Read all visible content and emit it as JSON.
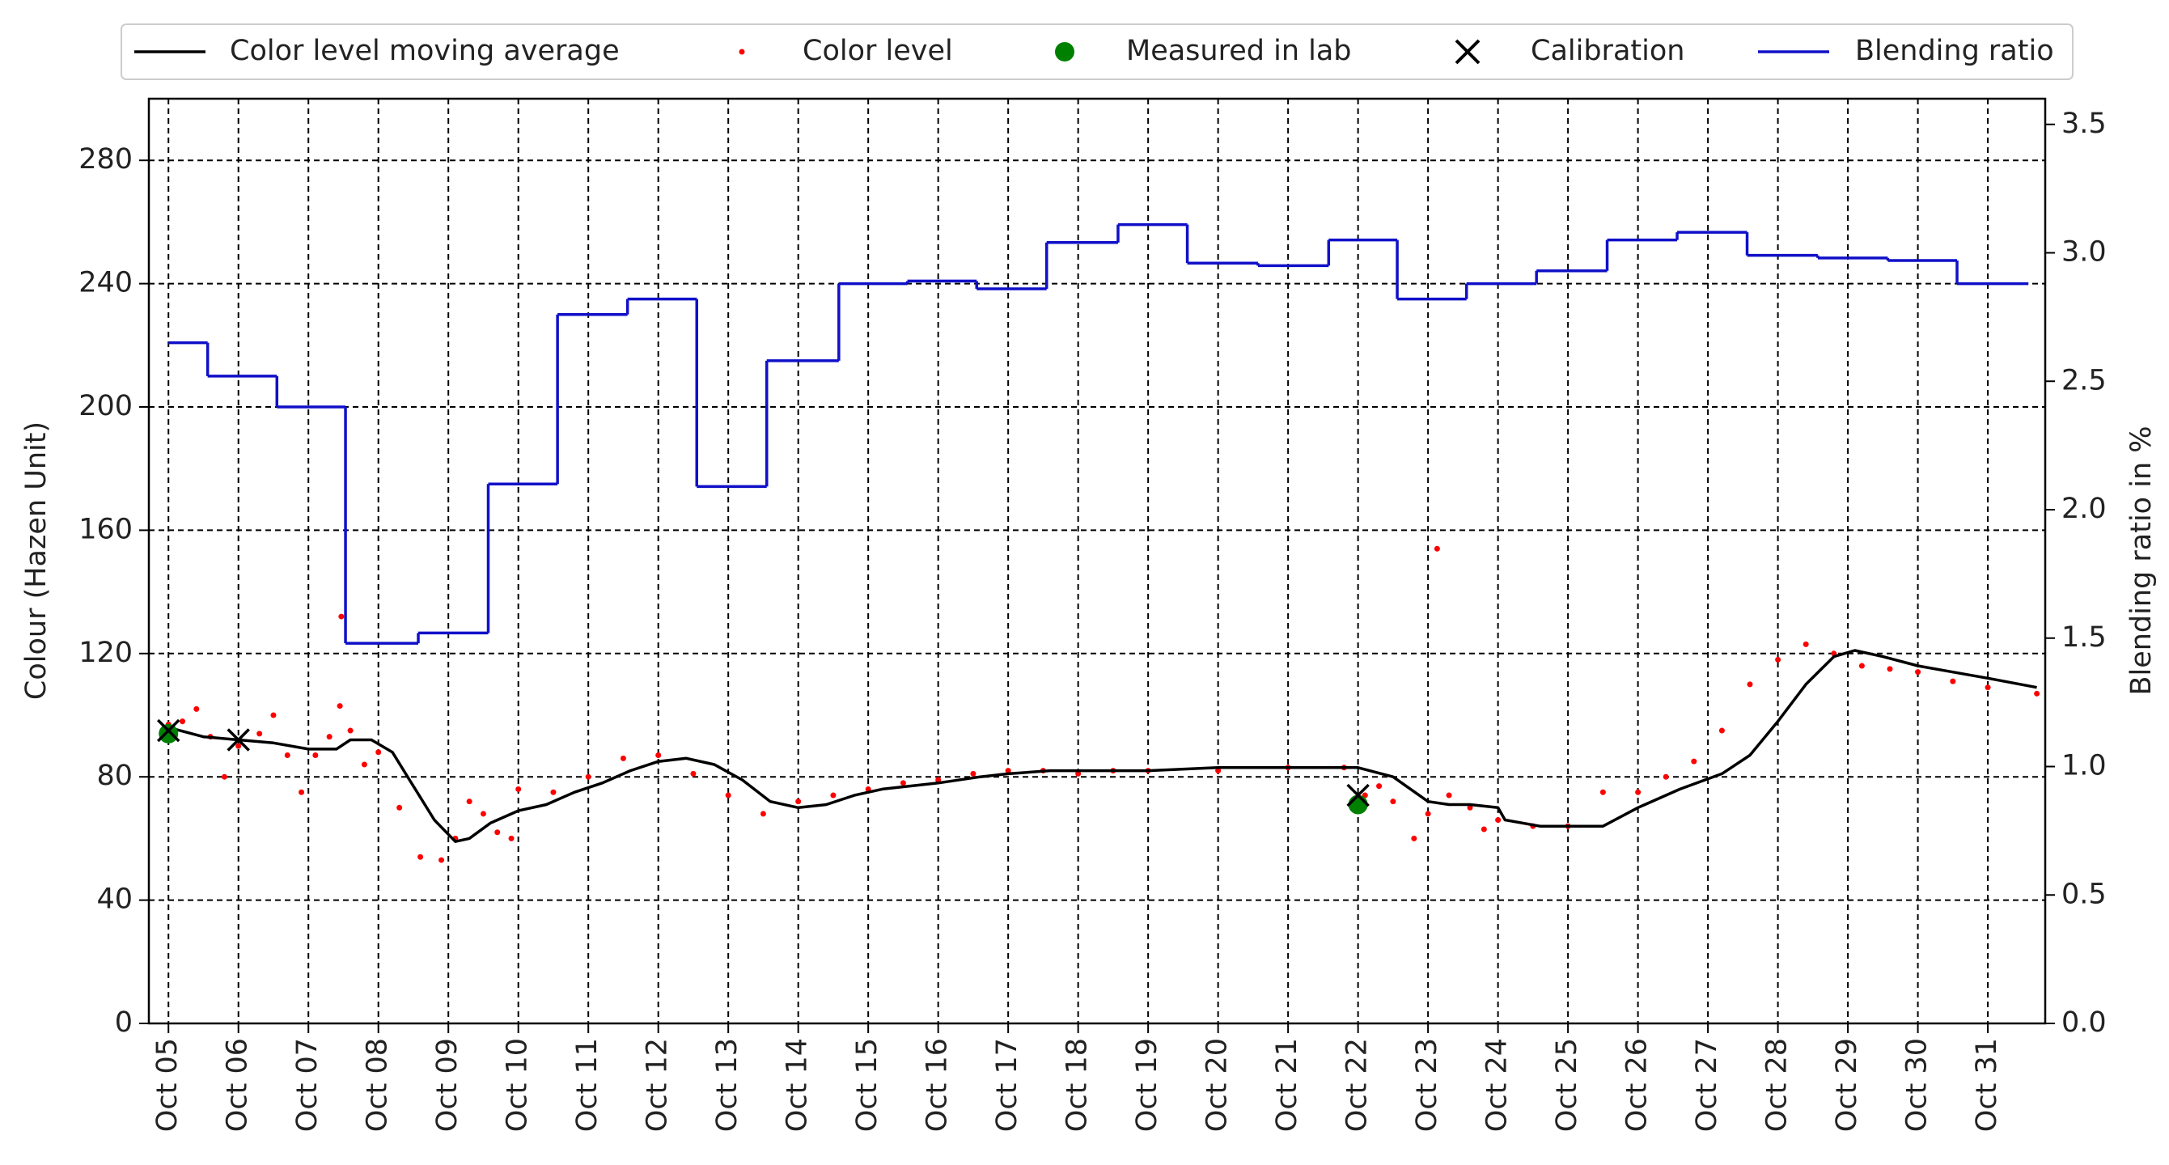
{
  "chart_data": {
    "type": "line",
    "ylabel": "Colour (Hazen Unit)",
    "y2label": "Blending ratio in %",
    "xlim": [
      4.72,
      31.82
    ],
    "xticks": [
      {
        "value": 5,
        "label": "Oct 05"
      },
      {
        "value": 6,
        "label": "Oct 06"
      },
      {
        "value": 7,
        "label": "Oct 07"
      },
      {
        "value": 8,
        "label": "Oct 08"
      },
      {
        "value": 9,
        "label": "Oct 09"
      },
      {
        "value": 10,
        "label": "Oct 10"
      },
      {
        "value": 11,
        "label": "Oct 11"
      },
      {
        "value": 12,
        "label": "Oct 12"
      },
      {
        "value": 13,
        "label": "Oct 13"
      },
      {
        "value": 14,
        "label": "Oct 14"
      },
      {
        "value": 15,
        "label": "Oct 15"
      },
      {
        "value": 16,
        "label": "Oct 16"
      },
      {
        "value": 17,
        "label": "Oct 17"
      },
      {
        "value": 18,
        "label": "Oct 18"
      },
      {
        "value": 19,
        "label": "Oct 19"
      },
      {
        "value": 20,
        "label": "Oct 20"
      },
      {
        "value": 21,
        "label": "Oct 21"
      },
      {
        "value": 22,
        "label": "Oct 22"
      },
      {
        "value": 23,
        "label": "Oct 23"
      },
      {
        "value": 24,
        "label": "Oct 24"
      },
      {
        "value": 25,
        "label": "Oct 25"
      },
      {
        "value": 26,
        "label": "Oct 26"
      },
      {
        "value": 27,
        "label": "Oct 27"
      },
      {
        "value": 28,
        "label": "Oct 28"
      },
      {
        "value": 29,
        "label": "Oct 29"
      },
      {
        "value": 30,
        "label": "Oct 30"
      },
      {
        "value": 31,
        "label": "Oct 31"
      }
    ],
    "ylim": [
      0,
      300
    ],
    "yticks": [
      0,
      40,
      80,
      120,
      160,
      200,
      240,
      280
    ],
    "y2lim": [
      0,
      3.6
    ],
    "y2ticks": [
      {
        "value": 0,
        "label": "0.0"
      },
      0.5,
      {
        "value": 1,
        "label": "1.0"
      },
      1.5,
      {
        "value": 2,
        "label": "2.0"
      },
      2.5,
      {
        "value": 3,
        "label": "3.0"
      },
      3.5
    ],
    "grid": true,
    "legend": "top",
    "series": [
      {
        "name": "Color level moving average",
        "style": "line",
        "color": "#000000",
        "x": [
          5.0,
          5.5,
          6.0,
          6.5,
          7.0,
          7.4,
          7.6,
          7.9,
          8.2,
          8.5,
          8.8,
          9.1,
          9.3,
          9.6,
          10.0,
          10.4,
          10.8,
          11.2,
          11.6,
          12.0,
          12.4,
          12.8,
          13.2,
          13.6,
          14.0,
          14.4,
          14.8,
          15.2,
          16.0,
          16.6,
          17.0,
          17.6,
          18.4,
          19.0,
          20.0,
          21.0,
          22.0,
          22.5,
          23.0,
          23.3,
          23.6,
          24.0,
          24.1,
          24.6,
          25.0,
          25.5,
          26.0,
          26.6,
          27.2,
          27.6,
          28.0,
          28.4,
          28.8,
          29.1,
          29.5,
          30.0,
          30.5,
          31.0,
          31.7
        ],
        "values": [
          96,
          93,
          92,
          91,
          89,
          89,
          92,
          92,
          88,
          77,
          66,
          59,
          60,
          65,
          69,
          71,
          75,
          78,
          82,
          85,
          86,
          84,
          79,
          72,
          70,
          71,
          74,
          76,
          78,
          80,
          81,
          82,
          82,
          82,
          83,
          83,
          83,
          80,
          72,
          71,
          71,
          70,
          66,
          64,
          64,
          64,
          70,
          76,
          81,
          87,
          98,
          110,
          119,
          121,
          119,
          116,
          114,
          112,
          109
        ]
      },
      {
        "name": "Color level",
        "style": "scatter",
        "color": "#ff0000",
        "x": [
          5.0,
          5.2,
          5.4,
          5.6,
          5.8,
          6.0,
          6.3,
          6.5,
          6.7,
          6.9,
          7.1,
          7.3,
          7.45,
          7.47,
          7.6,
          7.8,
          8.0,
          8.3,
          8.6,
          8.9,
          9.1,
          9.3,
          9.5,
          9.7,
          9.9,
          10.0,
          10.5,
          11.0,
          11.5,
          12.0,
          12.5,
          13.0,
          13.5,
          14.0,
          14.5,
          15.0,
          15.5,
          16.0,
          16.5,
          17.0,
          17.5,
          18.0,
          18.5,
          19.0,
          20.0,
          21.0,
          21.8,
          22.1,
          22.3,
          22.5,
          22.8,
          23.0,
          23.13,
          23.3,
          23.6,
          23.8,
          24.0,
          24.5,
          25.0,
          25.5,
          26.0,
          26.4,
          26.8,
          27.2,
          27.6,
          28.0,
          28.4,
          28.8,
          29.2,
          29.6,
          30.0,
          30.5,
          31.0,
          31.7
        ],
        "values": [
          97,
          98,
          102,
          93,
          80,
          90,
          94,
          100,
          87,
          75,
          87,
          93,
          103,
          132,
          95,
          84,
          88,
          70,
          54,
          53,
          60,
          72,
          68,
          62,
          60,
          76,
          75,
          80,
          86,
          87,
          81,
          74,
          68,
          72,
          74,
          76,
          78,
          79,
          81,
          82,
          82,
          81,
          82,
          82,
          82,
          83,
          83,
          74,
          77,
          72,
          60,
          68,
          154,
          74,
          70,
          63,
          66,
          64,
          64,
          75,
          75,
          80,
          85,
          95,
          110,
          118,
          123,
          120,
          116,
          115,
          114,
          111,
          109,
          107
        ]
      },
      {
        "name": "Measured in lab",
        "style": "dot",
        "color": "#008000",
        "x": [
          5.0,
          22.0
        ],
        "values": [
          94,
          71
        ]
      },
      {
        "name": "Calibration",
        "style": "cross",
        "color": "#000000",
        "x": [
          5.0,
          6.0,
          22.0
        ],
        "values": [
          95,
          92,
          74
        ]
      },
      {
        "name": "Blending ratio",
        "style": "step",
        "color": "#1010c8",
        "axis": "y2",
        "x": [
          5.0,
          5.56,
          6.55,
          7.53,
          8.57,
          9.57,
          10.56,
          11.56,
          12.55,
          13.55,
          14.58,
          15.56,
          16.55,
          17.55,
          18.57,
          19.56,
          20.57,
          21.58,
          22.56,
          23.55,
          24.55,
          25.56,
          26.56,
          27.56,
          28.57,
          29.57,
          30.56,
          31.58
        ],
        "values": [
          2.65,
          2.52,
          2.4,
          1.48,
          1.52,
          2.1,
          2.76,
          2.82,
          2.09,
          2.58,
          2.88,
          2.89,
          2.86,
          3.04,
          3.11,
          2.96,
          2.95,
          3.05,
          2.82,
          2.88,
          2.93,
          3.05,
          3.08,
          2.99,
          2.98,
          2.97,
          2.88,
          2.88
        ]
      }
    ]
  }
}
